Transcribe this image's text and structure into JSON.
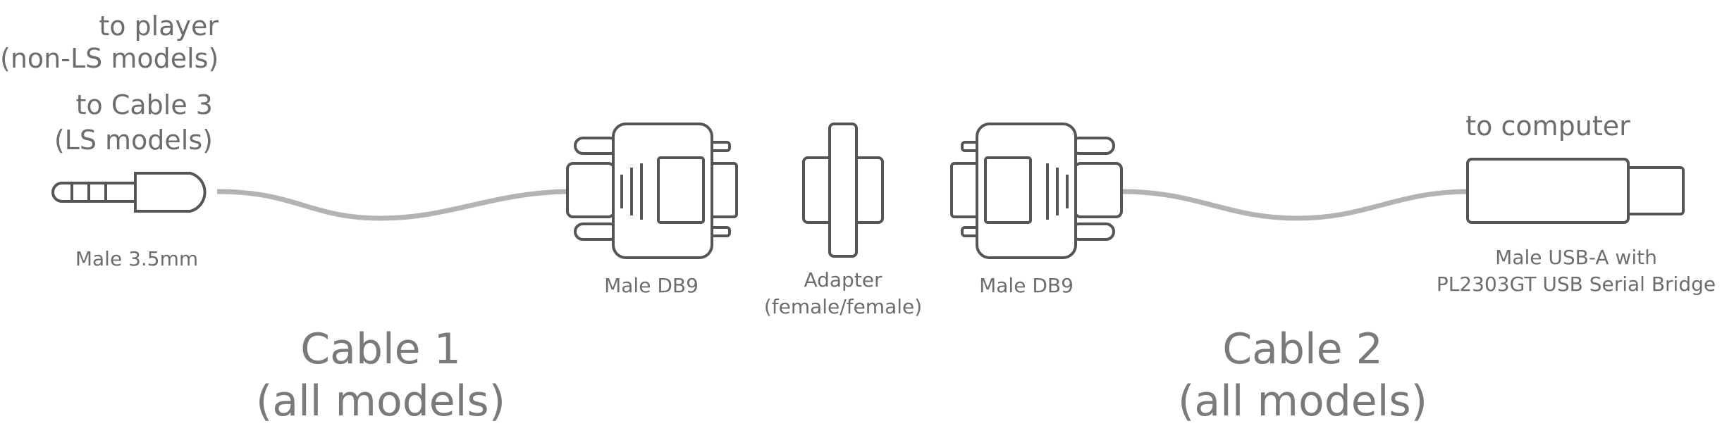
{
  "labels": {
    "to_player": "to player",
    "non_ls_models": "(non-LS models)",
    "to_cable3": "to Cable 3",
    "ls_models": "(LS models)",
    "to_computer": "to computer",
    "male_35mm": "Male 3.5mm",
    "male_db9_left": "Male DB9",
    "adapter": "Adapter",
    "adapter_type": "(female/female)",
    "male_db9_right": "Male DB9",
    "usb_line1": "Male USB-A with",
    "usb_line2": "PL2303GT USB Serial Bridge"
  },
  "cables": {
    "cable1": {
      "title": "Cable 1",
      "subtitle": "(all models)"
    },
    "cable2": {
      "title": "Cable 2",
      "subtitle": "(all models)"
    }
  },
  "colors": {
    "stroke": "#555555",
    "cable": "#b3b3b3",
    "text": "#6d6d6d"
  }
}
